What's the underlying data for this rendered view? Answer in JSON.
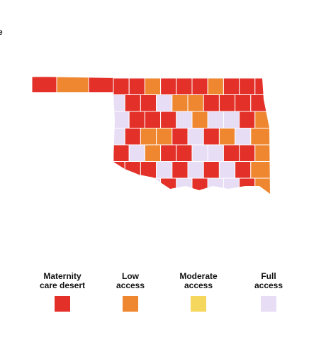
{
  "stray_text": "e",
  "legend": [
    {
      "lines": [
        "Maternity",
        "care desert"
      ],
      "color": "#e3312a"
    },
    {
      "lines": [
        "Low",
        "access"
      ],
      "color": "#ef8730"
    },
    {
      "lines": [
        "Moderate",
        "access"
      ],
      "color": "#f5d75e"
    },
    {
      "lines": [
        "Full",
        "access"
      ],
      "color": "#e7ddf5"
    }
  ]
}
